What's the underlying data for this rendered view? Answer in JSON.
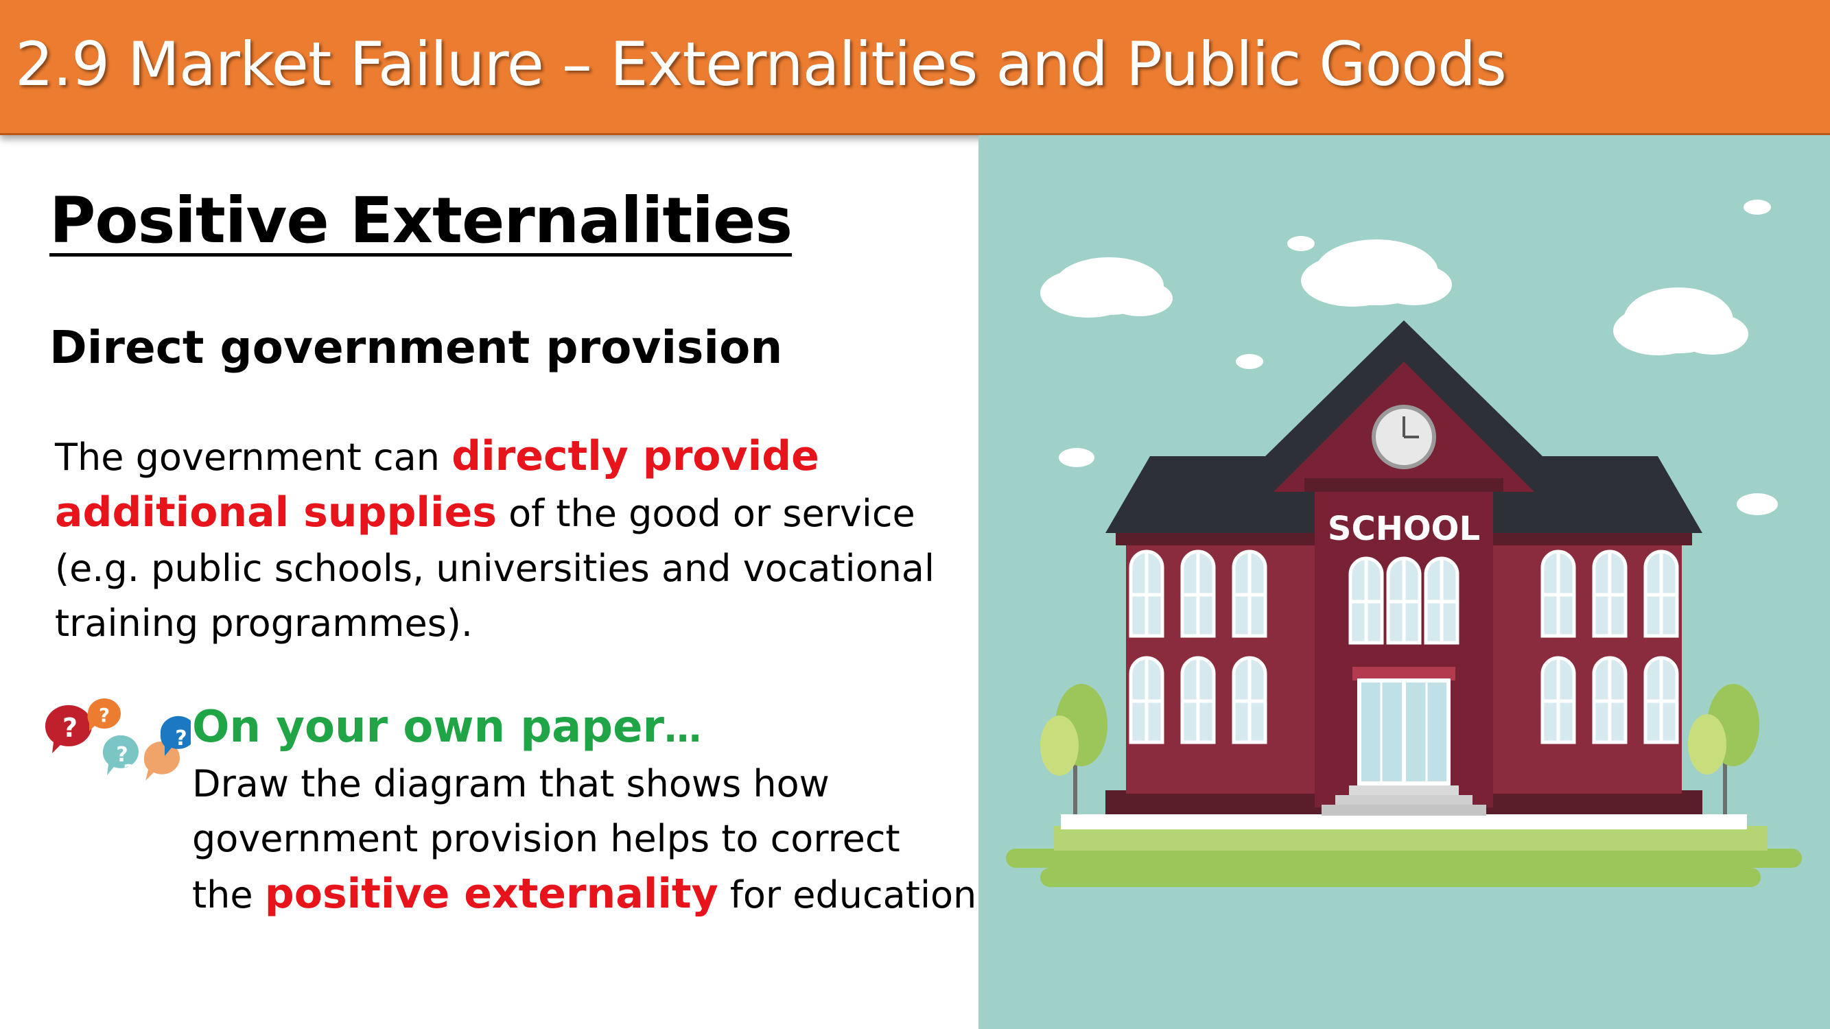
{
  "header": {
    "title": "2.9 Market Failure – Externalities and Public Goods"
  },
  "content": {
    "heading": "Positive Externalities",
    "subheading": "Direct government provision",
    "paragraph": {
      "part1": "The government can ",
      "highlight1": "directly provide",
      "highlight2": "additional supplies",
      "part2": " of the good or service",
      "line3": "(e.g. public schools, universities and vocational",
      "line4": "training programmes)."
    },
    "task": {
      "title": "On your own paper",
      "ellipsis": "…",
      "line1": "Draw the diagram that shows how",
      "line2": "government provision helps to correct",
      "line3_part1": "the ",
      "line3_highlight": "positive externality",
      "line3_part2": " for education."
    }
  },
  "illustration": {
    "sign": "SCHOOL",
    "bubble_mark": "?",
    "colors": {
      "sky": "#a0d1c9",
      "building": "#8a2c3e",
      "roof": "#2e3038",
      "grass": "#9cc55a",
      "header": "#ec7c30",
      "red_text": "#e8141b",
      "green_text": "#1fa546"
    }
  }
}
